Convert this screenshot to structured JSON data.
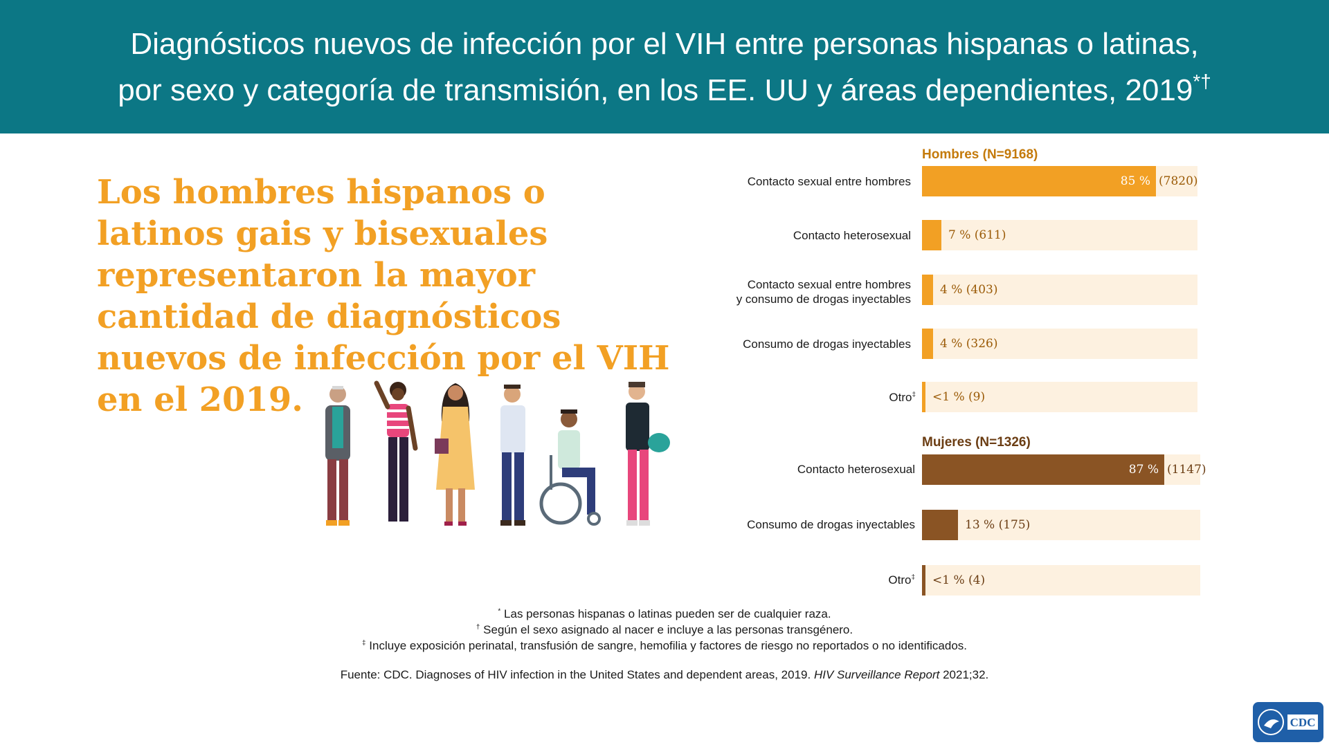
{
  "title": {
    "line1": "Diagnósticos nuevos de infección por el VIH entre personas hispanas o latinas,",
    "line2": "por sexo y categoría de transmisión, en los EE. UU y áreas dependientes, 2019",
    "marks": "*†"
  },
  "headline": "Los hombres hispanos o latinos gais y bisexuales representaron la mayor cantidad de diagnósticos nuevos de infección por el VIH en el 2019.",
  "chart_data": {
    "type": "bar",
    "orientation": "horizontal",
    "unit": "%",
    "xlim": [
      0,
      100
    ],
    "groups": [
      {
        "name": "Hombres (N=9168)",
        "color": "#f2a024",
        "track_color": "#fdf1e0",
        "label_color": "#9a5a06",
        "categories": [
          {
            "label": "Contacto sexual entre hombres",
            "value": 85,
            "text": "85 %",
            "count_text": "(7820)"
          },
          {
            "label": "Contacto heterosexual",
            "value": 7,
            "text": "7 % (611)"
          },
          {
            "label": "Contacto sexual entre hombres",
            "label2": "y consumo de drogas inyectables",
            "value": 4,
            "text": "4 % (403)"
          },
          {
            "label": "Consumo de drogas inyectables",
            "value": 4,
            "text": "4 % (326)"
          },
          {
            "label": "Otro",
            "mark": "‡",
            "value": 0.5,
            "text": "<1 % (9)"
          }
        ]
      },
      {
        "name": "Mujeres (N=1326)",
        "color": "#8a5424",
        "track_color": "#fdf1e0",
        "label_color": "#6b3d13",
        "categories": [
          {
            "label": "Contacto heterosexual",
            "value": 87,
            "text": "87 %",
            "count_text": "(1147)"
          },
          {
            "label": "Consumo de drogas inyectables",
            "value": 13,
            "text": "13 % (175)"
          },
          {
            "label": "Otro",
            "mark": "‡",
            "value": 0.5,
            "text": "<1 % (4)"
          }
        ]
      }
    ]
  },
  "notes": [
    {
      "mark": "*",
      "text": "Las personas hispanas o latinas pueden ser de cualquier raza."
    },
    {
      "mark": "†",
      "text": "Según el sexo asignado al nacer e incluye a las personas transgénero."
    },
    {
      "mark": "‡",
      "text": "Incluye exposición perinatal, transfusión de sangre, hemofilia y factores de riesgo no reportados o no identificados."
    }
  ],
  "source": {
    "prefix": "Fuente: CDC. Diagnoses of HIV infection in the United States and dependent areas, 2019.",
    "italic": "HIV Surveillance Report",
    "suffix": "2021;32."
  },
  "logo": {
    "text": "CDC",
    "color": "#1f5fa8",
    "icon": "cdc-logo-icon"
  },
  "illustration": {
    "icon": "people-group-illustration"
  }
}
